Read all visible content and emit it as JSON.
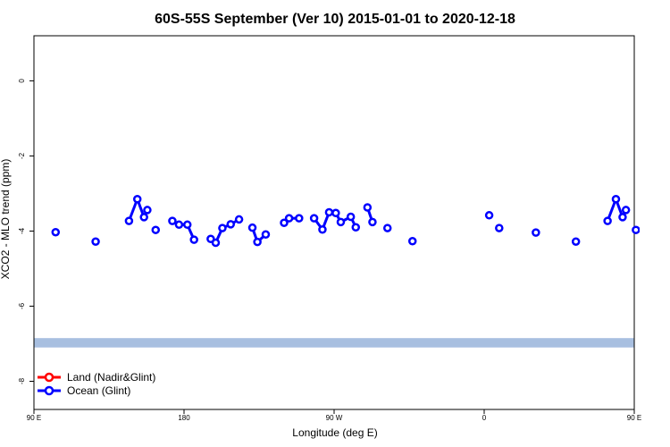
{
  "chart_data": {
    "type": "line",
    "title": "60S-55S September (Ver 10)   2015-01-01 to 2020-12-18",
    "xlabel": "Longitude (deg E)",
    "ylabel": "XCO2 - MLO trend (ppm)",
    "xlim": [
      90,
      450
    ],
    "ylim": [
      -8.75,
      1.2
    ],
    "x_ticks": [
      {
        "value": 90,
        "label": "90 E"
      },
      {
        "value": 180,
        "label": "180"
      },
      {
        "value": 270,
        "label": "90 W"
      },
      {
        "value": 360,
        "label": "0"
      },
      {
        "value": 450,
        "label": "90 E"
      },
      {
        "value": 540,
        "label": "180"
      }
    ],
    "y_ticks": [
      {
        "value": 0,
        "label": "0"
      },
      {
        "value": -2,
        "label": "-2"
      },
      {
        "value": -4,
        "label": "-4"
      },
      {
        "value": -6,
        "label": "-6"
      },
      {
        "value": -8,
        "label": "-8"
      }
    ],
    "band": {
      "y_from": -7.1,
      "y_to": -6.85,
      "color": "#a8bfe0"
    },
    "legend_position": "bottom-left",
    "series": [
      {
        "name": "Land (Nadir&Glint)",
        "color": "#ff0000",
        "points": []
      },
      {
        "name": "Ocean (Glint)",
        "color": "#0000ff",
        "points": [
          [
            103,
            -4.03,
            false
          ],
          [
            127,
            -4.28,
            false
          ],
          [
            147,
            -3.73,
            false
          ],
          [
            152,
            -3.15,
            true
          ],
          [
            156,
            -3.63,
            true
          ],
          [
            158,
            -3.44,
            true
          ],
          [
            163,
            -3.97,
            false
          ],
          [
            173,
            -3.73,
            false
          ],
          [
            177,
            -3.83,
            true
          ],
          [
            182,
            -3.83,
            true
          ],
          [
            186,
            -4.23,
            true
          ],
          [
            196,
            -4.21,
            false
          ],
          [
            199,
            -4.31,
            true
          ],
          [
            203,
            -3.92,
            true
          ],
          [
            208,
            -3.82,
            true
          ],
          [
            213,
            -3.69,
            true
          ],
          [
            221,
            -3.91,
            false
          ],
          [
            224,
            -4.29,
            true
          ],
          [
            229,
            -4.09,
            true
          ],
          [
            240,
            -3.78,
            false
          ],
          [
            243,
            -3.66,
            true
          ],
          [
            249,
            -3.66,
            true
          ],
          [
            258,
            -3.66,
            false
          ],
          [
            263,
            -3.96,
            true
          ],
          [
            267,
            -3.5,
            true
          ],
          [
            271,
            -3.52,
            true
          ],
          [
            274,
            -3.76,
            true
          ],
          [
            280,
            -3.62,
            true
          ],
          [
            283,
            -3.9,
            true
          ],
          [
            290,
            -3.37,
            false
          ],
          [
            293,
            -3.76,
            true
          ],
          [
            302,
            -3.92,
            false
          ],
          [
            317,
            -4.27,
            false
          ],
          [
            363,
            -3.58,
            false
          ],
          [
            369,
            -3.92,
            false
          ],
          [
            391,
            -4.04,
            false
          ],
          [
            415,
            -4.28,
            false
          ],
          [
            434,
            -3.73,
            false
          ],
          [
            439,
            -3.15,
            true
          ],
          [
            443,
            -3.63,
            true
          ],
          [
            445,
            -3.44,
            true
          ],
          [
            451,
            -3.97,
            false
          ]
        ]
      }
    ]
  }
}
